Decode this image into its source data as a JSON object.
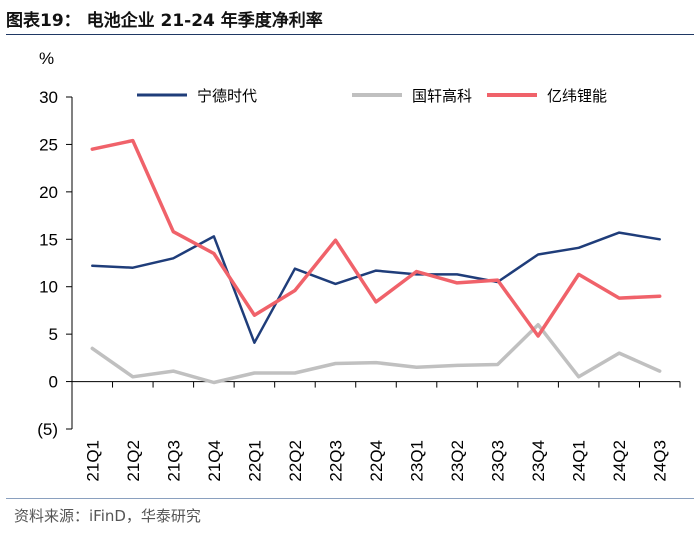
{
  "header": {
    "title": "图表19：  电池企业 21-24 年季度净利率"
  },
  "footer": {
    "source": "资料来源：iFinD，华泰研究"
  },
  "chart_data": {
    "type": "line",
    "title": "图表19：  电池企业 21-24 年季度净利率",
    "unit": "%",
    "xlabel": "",
    "ylabel": "",
    "ylim": [
      -5,
      30
    ],
    "yticks": [
      30,
      25,
      20,
      15,
      10,
      5,
      0,
      -5
    ],
    "ytick_labels": [
      "30",
      "25",
      "20",
      "15",
      "10",
      "5",
      "0",
      "(5)"
    ],
    "grid": false,
    "legend_position": "top",
    "categories": [
      "21Q1",
      "21Q2",
      "21Q3",
      "21Q4",
      "22Q1",
      "22Q2",
      "22Q3",
      "22Q4",
      "23Q1",
      "23Q2",
      "23Q3",
      "23Q4",
      "24Q1",
      "24Q2",
      "24Q3"
    ],
    "series": [
      {
        "name": "宁德时代",
        "color": "#1f3d7a",
        "values": [
          12.2,
          12.0,
          13.0,
          15.3,
          4.1,
          11.9,
          10.3,
          11.7,
          11.3,
          11.3,
          10.5,
          13.4,
          14.1,
          15.7,
          15.0
        ]
      },
      {
        "name": "国轩高科",
        "color": "#c0c0c0",
        "values": [
          3.5,
          0.5,
          1.1,
          -0.1,
          0.9,
          0.9,
          1.9,
          2.0,
          1.5,
          1.7,
          1.8,
          6.0,
          0.5,
          3.0,
          1.1
        ]
      },
      {
        "name": "亿纬锂能",
        "color": "#f0626a",
        "values": [
          24.5,
          25.4,
          15.8,
          13.5,
          7.0,
          9.6,
          14.9,
          8.4,
          11.6,
          10.4,
          10.7,
          4.8,
          11.3,
          8.8,
          9.0
        ]
      }
    ]
  }
}
